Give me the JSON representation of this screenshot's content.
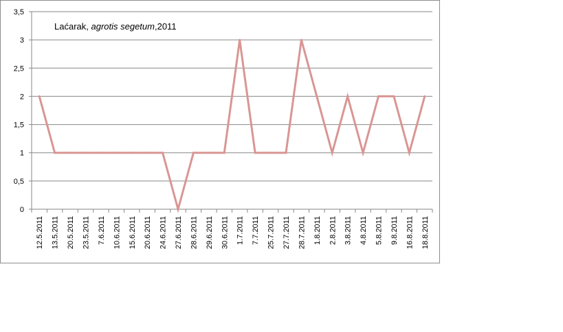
{
  "chart_data": {
    "type": "line",
    "title_parts": {
      "prefix": "Laćarak, ",
      "species": "agrotis segetum",
      "suffix": ",2011"
    },
    "xlabel": "",
    "ylabel": "",
    "ylim": [
      0,
      3.5
    ],
    "yticks": [
      "0",
      "0,5",
      "1",
      "1,5",
      "2",
      "2,5",
      "3",
      "3,5"
    ],
    "grid": true,
    "legend": "none",
    "categories": [
      "12.5.2011",
      "13.5.2011",
      "20.5.2011",
      "23.5.2011",
      "7.6.2011",
      "10.6.2011",
      "15.6.2011",
      "20.6.2011",
      "24.6.2011",
      "27.6.2011",
      "28.6.2011",
      "29.6.2011",
      "30.6.2011",
      "1.7.2011",
      "7.7.2011",
      "25.7.2011",
      "27.7.2011",
      "28.7.2011",
      "1.8.2011",
      "2.8.2011",
      "3.8.2011",
      "4.8.2011",
      "5.8.2011",
      "9.8.2011",
      "16.8.2011",
      "18.8.2011"
    ],
    "series": [
      {
        "values": [
          2,
          1,
          1,
          1,
          1,
          1,
          1,
          1,
          1,
          0,
          1,
          1,
          1,
          3,
          1,
          1,
          1,
          3,
          2,
          1,
          2,
          1,
          2,
          2,
          1,
          2
        ]
      }
    ],
    "colors": {
      "line": "#d99594",
      "grid": "#868686",
      "axis": "#868686"
    }
  }
}
